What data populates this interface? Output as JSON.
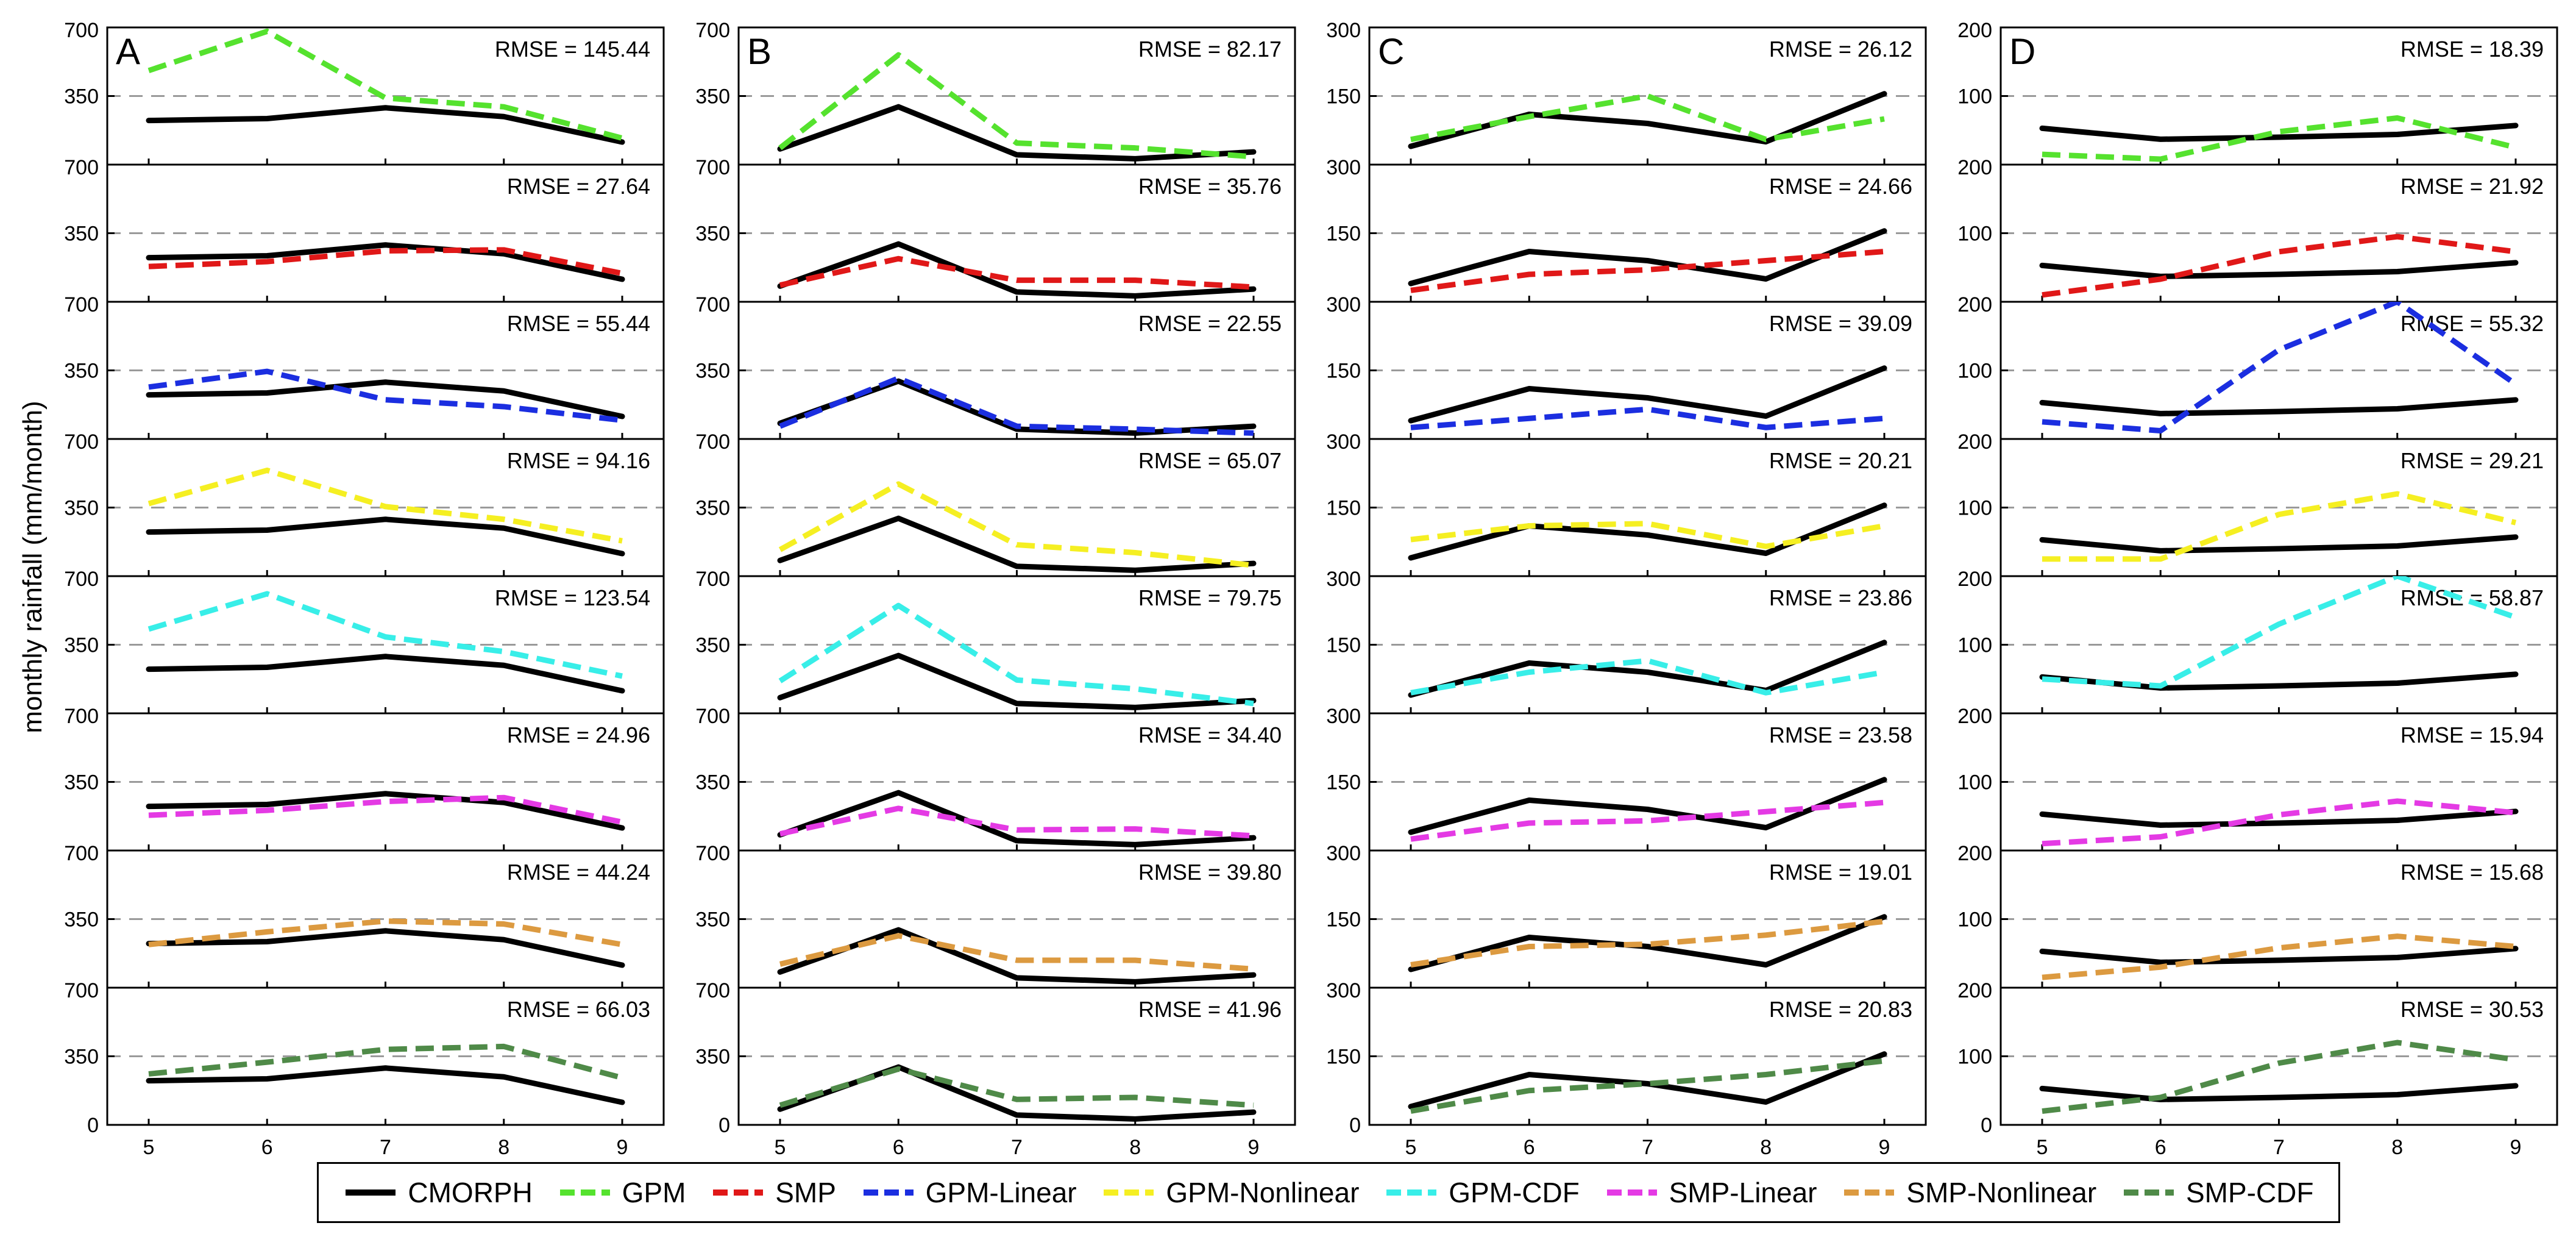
{
  "chart_data": {
    "type": "line",
    "ylabel": "monthly rainfall (mm/month)",
    "x": [
      "5",
      "6",
      "7",
      "8",
      "9"
    ],
    "series_styles": [
      {
        "key": "CMORPH",
        "color": "#000000",
        "dash": "solid"
      },
      {
        "key": "GPM",
        "color": "#55e22e",
        "dash": "dashed"
      },
      {
        "key": "SMP",
        "color": "#e01818",
        "dash": "dashed"
      },
      {
        "key": "GPM-Linear",
        "color": "#1b2ee0",
        "dash": "dashed"
      },
      {
        "key": "GPM-Nonlinear",
        "color": "#f5ef22",
        "dash": "dashed"
      },
      {
        "key": "GPM-CDF",
        "color": "#38eee8",
        "dash": "dashed"
      },
      {
        "key": "SMP-Linear",
        "color": "#e43ae4",
        "dash": "dashed"
      },
      {
        "key": "SMP-Nonlinear",
        "color": "#dc9a40",
        "dash": "dashed"
      },
      {
        "key": "SMP-CDF",
        "color": "#4f8a48",
        "dash": "dashed"
      }
    ],
    "legend": [
      "CMORPH",
      "GPM",
      "SMP",
      "GPM-Linear",
      "GPM-Nonlinear",
      "GPM-CDF",
      "SMP-Linear",
      "SMP-Nonlinear",
      "SMP-CDF"
    ],
    "columns": [
      {
        "label": "A",
        "ymax": 700,
        "yticks": [
          "700",
          "350",
          "0"
        ],
        "cmorph": [
          225,
          235,
          290,
          245,
          115
        ],
        "rows": [
          {
            "rmse": "RMSE = 145.44",
            "series": "GPM",
            "values": [
              480,
              680,
              340,
              295,
              135
            ]
          },
          {
            "rmse": "RMSE = 27.64",
            "series": "SMP",
            "values": [
              180,
              205,
              260,
              265,
              145
            ]
          },
          {
            "rmse": "RMSE = 55.44",
            "series": "GPM-Linear",
            "values": [
              265,
              345,
              200,
              165,
              95
            ]
          },
          {
            "rmse": "RMSE = 94.16",
            "series": "GPM-Nonlinear",
            "values": [
              370,
              540,
              355,
              290,
              180
            ]
          },
          {
            "rmse": "RMSE = 123.54",
            "series": "GPM-CDF",
            "values": [
              430,
              610,
              390,
              315,
              190
            ]
          },
          {
            "rmse": "RMSE = 24.96",
            "series": "SMP-Linear",
            "values": [
              180,
              205,
              250,
              270,
              145
            ]
          },
          {
            "rmse": "RMSE = 44.24",
            "series": "SMP-Nonlinear",
            "values": [
              220,
              285,
              340,
              325,
              220
            ]
          },
          {
            "rmse": "RMSE = 66.03",
            "series": "SMP-CDF",
            "values": [
              260,
              320,
              385,
              400,
              240
            ]
          }
        ]
      },
      {
        "label": "B",
        "ymax": 700,
        "yticks": [
          "700",
          "350",
          "0"
        ],
        "cmorph": [
          80,
          295,
          50,
          30,
          65
        ],
        "rows": [
          {
            "rmse": "RMSE = 82.17",
            "series": "GPM",
            "values": [
              85,
              560,
              110,
              85,
              40
            ]
          },
          {
            "rmse": "RMSE = 35.76",
            "series": "SMP",
            "values": [
              85,
              220,
              110,
              110,
              75
            ]
          },
          {
            "rmse": "RMSE = 22.55",
            "series": "GPM-Linear",
            "values": [
              65,
              310,
              65,
              50,
              30
            ]
          },
          {
            "rmse": "RMSE = 65.07",
            "series": "GPM-Nonlinear",
            "values": [
              135,
              470,
              160,
              120,
              55
            ]
          },
          {
            "rmse": "RMSE = 79.75",
            "series": "GPM-CDF",
            "values": [
              165,
              550,
              170,
              125,
              50
            ]
          },
          {
            "rmse": "RMSE = 34.40",
            "series": "SMP-Linear",
            "values": [
              85,
              215,
              105,
              110,
              75
            ]
          },
          {
            "rmse": "RMSE = 39.80",
            "series": "SMP-Nonlinear",
            "values": [
              120,
              265,
              140,
              140,
              95
            ]
          },
          {
            "rmse": "RMSE = 41.96",
            "series": "SMP-CDF",
            "values": [
              100,
              285,
              130,
              140,
              100
            ]
          }
        ]
      },
      {
        "label": "C",
        "ymax": 300,
        "yticks": [
          "300",
          "150",
          "0"
        ],
        "cmorph": [
          40,
          110,
          90,
          50,
          155
        ],
        "rows": [
          {
            "rmse": "RMSE = 26.12",
            "series": "GPM",
            "values": [
              55,
              105,
              150,
              55,
              100
            ]
          },
          {
            "rmse": "RMSE = 24.66",
            "series": "SMP",
            "values": [
              25,
              60,
              70,
              90,
              110
            ]
          },
          {
            "rmse": "RMSE = 39.09",
            "series": "GPM-Linear",
            "values": [
              25,
              45,
              65,
              25,
              45
            ]
          },
          {
            "rmse": "RMSE = 20.21",
            "series": "GPM-Nonlinear",
            "values": [
              80,
              110,
              115,
              65,
              110
            ]
          },
          {
            "rmse": "RMSE = 23.86",
            "series": "GPM-CDF",
            "values": [
              45,
              90,
              115,
              45,
              90
            ]
          },
          {
            "rmse": "RMSE = 23.58",
            "series": "SMP-Linear",
            "values": [
              25,
              60,
              65,
              85,
              105
            ]
          },
          {
            "rmse": "RMSE = 19.01",
            "series": "SMP-Nonlinear",
            "values": [
              50,
              90,
              95,
              115,
              145
            ]
          },
          {
            "rmse": "RMSE = 20.83",
            "series": "SMP-CDF",
            "values": [
              30,
              75,
              90,
              110,
              140
            ]
          }
        ]
      },
      {
        "label": "D",
        "ymax": 200,
        "yticks": [
          "200",
          "100",
          "0"
        ],
        "cmorph": [
          53,
          37,
          40,
          44,
          57
        ],
        "rows": [
          {
            "rmse": "RMSE = 18.39",
            "series": "GPM",
            "values": [
              15,
              8,
              48,
              68,
              25
            ]
          },
          {
            "rmse": "RMSE = 21.92",
            "series": "SMP",
            "values": [
              10,
              33,
              73,
              95,
              73
            ]
          },
          {
            "rmse": "RMSE = 55.32",
            "series": "GPM-Linear",
            "values": [
              25,
              12,
              130,
              200,
              80
            ]
          },
          {
            "rmse": "RMSE = 29.21",
            "series": "GPM-Nonlinear",
            "values": [
              25,
              25,
              90,
              120,
              78
            ]
          },
          {
            "rmse": "RMSE = 58.87",
            "series": "GPM-CDF",
            "values": [
              50,
              40,
              130,
              200,
              140
            ]
          },
          {
            "rmse": "RMSE = 15.94",
            "series": "SMP-Linear",
            "values": [
              10,
              20,
              52,
              72,
              55
            ]
          },
          {
            "rmse": "RMSE = 15.68",
            "series": "SMP-Nonlinear",
            "values": [
              15,
              30,
              58,
              75,
              60
            ]
          },
          {
            "rmse": "RMSE = 30.53",
            "series": "SMP-CDF",
            "values": [
              20,
              40,
              90,
              120,
              95
            ]
          }
        ]
      }
    ]
  }
}
